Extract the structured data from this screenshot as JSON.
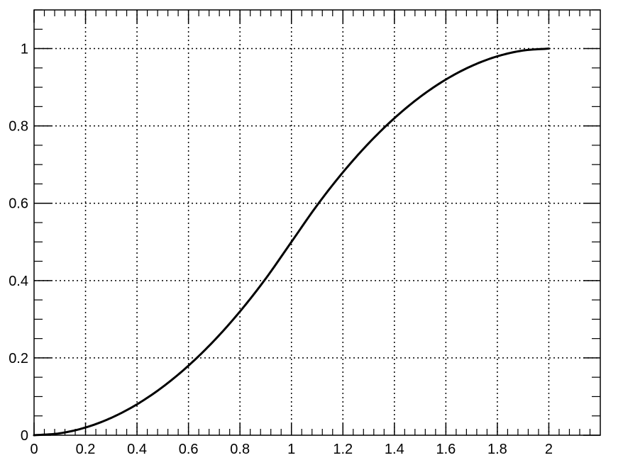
{
  "chart_data": {
    "type": "line",
    "title": "",
    "xlabel": "",
    "ylabel": "",
    "xlim": [
      0,
      2.2
    ],
    "ylim": [
      0,
      1.1
    ],
    "grid": true,
    "legend": "none",
    "line_color": "#000000",
    "x_ticks": [
      0,
      0.2,
      0.4,
      0.6,
      0.8,
      1,
      1.2,
      1.4,
      1.6,
      1.8,
      2
    ],
    "x_tick_labels": [
      "0",
      "0.2",
      "0.4",
      "0.6",
      "0.8",
      "1",
      "1.2",
      "1.4",
      "1.6",
      "1.8",
      "2"
    ],
    "y_ticks": [
      0,
      0.2,
      0.4,
      0.6,
      0.8,
      1
    ],
    "y_tick_labels": [
      "0",
      "0.2",
      "0.4",
      "0.6",
      "0.8",
      "1"
    ],
    "series": [
      {
        "x": [
          0,
          0.1,
          0.2,
          0.3,
          0.4,
          0.5,
          0.6,
          0.7,
          0.8,
          0.9,
          1.0,
          1.1,
          1.2,
          1.3,
          1.4,
          1.5,
          1.6,
          1.7,
          1.8,
          1.9,
          2.0
        ],
        "y": [
          0,
          0.005,
          0.02,
          0.045,
          0.08,
          0.125,
          0.18,
          0.245,
          0.32,
          0.405,
          0.5,
          0.595,
          0.68,
          0.755,
          0.82,
          0.875,
          0.92,
          0.955,
          0.98,
          0.995,
          1.0
        ]
      }
    ]
  }
}
